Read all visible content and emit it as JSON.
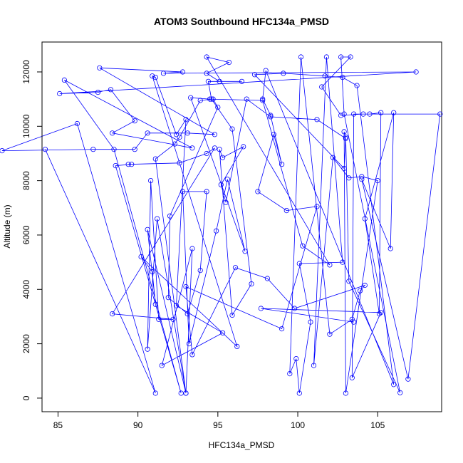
{
  "chart_data": {
    "type": "line",
    "title": "ATOM3 Southbound HFC134a_PMSD",
    "xlabel": "HFC134a_PMSD",
    "ylabel": "Altitude (m)",
    "xlim": [
      84,
      109
    ],
    "ylim": [
      -500,
      13100
    ],
    "xticks": [
      85,
      90,
      95,
      100,
      105
    ],
    "yticks": [
      0,
      2000,
      4000,
      6000,
      8000,
      10000,
      12000
    ],
    "grid": false,
    "markers": "open-circle",
    "series_color": "#0000ff",
    "series": [
      {
        "points": [
          [
            84.2,
            9150
          ],
          [
            91.1,
            180
          ],
          [
            86.2,
            10100
          ],
          [
            81.5,
            9100
          ],
          [
            87.2,
            9150
          ],
          [
            89.8,
            9150
          ],
          [
            90.6,
            9750
          ],
          [
            93.1,
            9750
          ],
          [
            94.8,
            9700
          ],
          [
            87.6,
            12150
          ],
          [
            92.8,
            12000
          ],
          [
            91.6,
            11950
          ],
          [
            107.4,
            12000
          ],
          [
            85.1,
            11200
          ],
          [
            87.5,
            11250
          ],
          [
            88.3,
            11350
          ],
          [
            89.8,
            10200
          ],
          [
            88.4,
            9750
          ],
          [
            93.4,
            9200
          ],
          [
            85.4,
            11700
          ],
          [
            88.5,
            9150
          ],
          [
            92.7,
            180
          ],
          [
            88.6,
            8550
          ],
          [
            89.6,
            8600
          ],
          [
            89.4,
            8600
          ],
          [
            92.6,
            8650
          ],
          [
            94.3,
            9000
          ],
          [
            94.8,
            9200
          ],
          [
            88.4,
            3100
          ],
          [
            92.2,
            2900
          ],
          [
            91.3,
            2900
          ],
          [
            90.8,
            8000
          ],
          [
            90.6,
            1800
          ],
          [
            91.2,
            6600
          ],
          [
            93.0,
            180
          ],
          [
            90.6,
            6200
          ],
          [
            91.1,
            3450
          ],
          [
            90.9,
            4650
          ],
          [
            90.2,
            5200
          ],
          [
            96.2,
            1900
          ],
          [
            90.9,
            11850
          ],
          [
            91.1,
            11800
          ],
          [
            92.4,
            9700
          ],
          [
            93.0,
            10250
          ],
          [
            92.4,
            3400
          ],
          [
            95.3,
            2400
          ],
          [
            91.5,
            1200
          ],
          [
            93.4,
            5500
          ],
          [
            93.0,
            180
          ],
          [
            91.1,
            8800
          ],
          [
            92.3,
            9350
          ],
          [
            92.6,
            9600
          ],
          [
            93.9,
            10950
          ],
          [
            94.7,
            11000
          ],
          [
            95.0,
            10700
          ],
          [
            92.0,
            6700
          ],
          [
            91.9,
            3700
          ],
          [
            93.1,
            3100
          ],
          [
            93.9,
            4700
          ],
          [
            94.3,
            7600
          ],
          [
            92.8,
            7600
          ],
          [
            93.2,
            2000
          ],
          [
            94.9,
            6150
          ],
          [
            95.6,
            8050
          ],
          [
            96.7,
            5400
          ],
          [
            93.3,
            11050
          ],
          [
            94.5,
            11000
          ],
          [
            97.8,
            10950
          ],
          [
            100.3,
            5600
          ],
          [
            102.0,
            4900
          ],
          [
            94.3,
            12550
          ],
          [
            95.7,
            12350
          ],
          [
            94.3,
            11950
          ],
          [
            95.1,
            11650
          ],
          [
            96.5,
            11650
          ],
          [
            94.4,
            11650
          ],
          [
            94.6,
            11000
          ],
          [
            95.9,
            9900
          ],
          [
            97.1,
            4200
          ],
          [
            95.9,
            3050
          ],
          [
            95.1,
            9150
          ],
          [
            95.3,
            8850
          ],
          [
            96.6,
            9250
          ],
          [
            95.2,
            7850
          ],
          [
            95.5,
            7200
          ],
          [
            96.8,
            11000
          ],
          [
            98.3,
            10350
          ],
          [
            101.2,
            10250
          ],
          [
            103.0,
            9550
          ],
          [
            102.9,
            8450
          ],
          [
            97.3,
            11900
          ],
          [
            99.1,
            11950
          ],
          [
            101.7,
            11850
          ],
          [
            102.8,
            11800
          ],
          [
            103.7,
            11500
          ],
          [
            106.0,
            500
          ],
          [
            98.0,
            12050
          ],
          [
            97.8,
            11000
          ],
          [
            98.3,
            10400
          ],
          [
            99.0,
            8600
          ],
          [
            98.5,
            9700
          ],
          [
            97.5,
            7600
          ],
          [
            99.3,
            6900
          ],
          [
            101.2,
            7050
          ],
          [
            99.0,
            2550
          ],
          [
            93.0,
            4100
          ],
          [
            93.4,
            1600
          ],
          [
            96.1,
            4800
          ],
          [
            98.1,
            4400
          ],
          [
            99.8,
            3300
          ],
          [
            104.2,
            4150
          ],
          [
            103.9,
            3950
          ],
          [
            103.4,
            2900
          ],
          [
            102.0,
            2350
          ],
          [
            100.2,
            12550
          ],
          [
            99.5,
            900
          ],
          [
            99.9,
            1450
          ],
          [
            100.1,
            180
          ],
          [
            100.8,
            2800
          ],
          [
            100.1,
            4950
          ],
          [
            102.8,
            5000
          ],
          [
            101.8,
            12550
          ],
          [
            101.0,
            1200
          ],
          [
            102.2,
            8850
          ],
          [
            103.2,
            8100
          ],
          [
            104.0,
            8150
          ],
          [
            105.0,
            8000
          ],
          [
            103.0,
            180
          ],
          [
            102.9,
            9800
          ],
          [
            103.0,
            9600
          ],
          [
            103.2,
            4300
          ],
          [
            106.4,
            200
          ],
          [
            102.9,
            10450
          ],
          [
            102.7,
            12550
          ],
          [
            103.3,
            12550
          ],
          [
            101.5,
            11450
          ],
          [
            102.7,
            10400
          ],
          [
            104.1,
            10450
          ],
          [
            104.5,
            10450
          ],
          [
            105.2,
            10500
          ],
          [
            105.1,
            3100
          ],
          [
            104.2,
            6600
          ],
          [
            106.0,
            10500
          ],
          [
            105.8,
            5500
          ],
          [
            104.0,
            8050
          ],
          [
            106.9,
            700
          ],
          [
            108.9,
            10450
          ],
          [
            103.5,
            10450
          ],
          [
            103.4,
            750
          ],
          [
            105.2,
            3150
          ],
          [
            97.7,
            3300
          ],
          [
            103.5,
            2800
          ]
        ]
      }
    ]
  }
}
